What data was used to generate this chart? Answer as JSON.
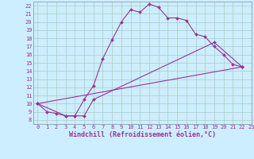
{
  "xlabel": "Windchill (Refroidissement éolien,°C)",
  "bg_color": "#cceeff",
  "grid_color": "#aaccbb",
  "line_color": "#993399",
  "spine_color": "#8888aa",
  "xlim": [
    -0.5,
    23
  ],
  "ylim": [
    7.5,
    22.5
  ],
  "xticks": [
    0,
    1,
    2,
    3,
    4,
    5,
    6,
    7,
    8,
    9,
    10,
    11,
    12,
    13,
    14,
    15,
    16,
    17,
    18,
    19,
    20,
    21,
    22,
    23
  ],
  "yticks": [
    8,
    9,
    10,
    11,
    12,
    13,
    14,
    15,
    16,
    17,
    18,
    19,
    20,
    21,
    22
  ],
  "series1_x": [
    0,
    1,
    2,
    3,
    4,
    5,
    6,
    7,
    8,
    9,
    10,
    11,
    12,
    13,
    14,
    15,
    16,
    17,
    18,
    19,
    20,
    21,
    22
  ],
  "series1_y": [
    10,
    9,
    8.8,
    8.5,
    8.5,
    10.5,
    12.2,
    15.5,
    17.8,
    20.0,
    21.5,
    21.2,
    22.2,
    21.8,
    20.5,
    20.5,
    20.2,
    18.5,
    18.2,
    17.0,
    16.0,
    14.8,
    14.5
  ],
  "series2_x": [
    0,
    3,
    4,
    5,
    6,
    19,
    22
  ],
  "series2_y": [
    10,
    8.5,
    8.5,
    8.5,
    10.5,
    17.5,
    14.5
  ],
  "series3_x": [
    0,
    22
  ],
  "series3_y": [
    10,
    14.5
  ],
  "xlabel_fontsize": 6,
  "tick_fontsize": 5
}
